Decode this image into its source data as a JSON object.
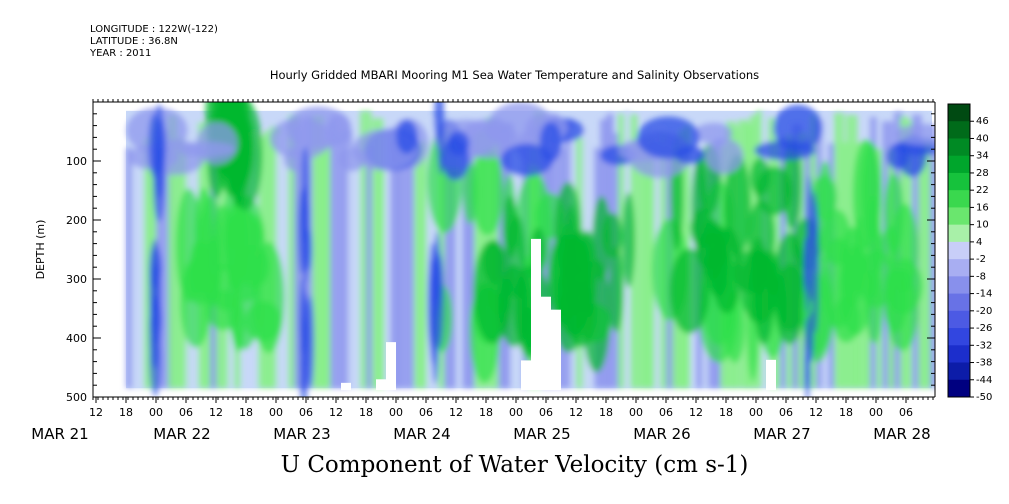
{
  "header": {
    "longitude": "LONGITUDE : 122W(-122)",
    "latitude": "LATITUDE : 36.8N",
    "year": "YEAR : 2011",
    "title": "Hourly Gridded MBARI Mooring M1 Sea Water Temperature and Salinity Observations"
  },
  "chart_data": {
    "type": "heatmap",
    "title": "Hourly Gridded MBARI Mooring M1 Sea Water Temperature and Salinity Observations",
    "bottom_title": "U Component of Water Velocity (cm s-1)",
    "ylabel": "DEPTH (m)",
    "ylim": [
      500,
      0
    ],
    "y_ticks": [
      100,
      200,
      300,
      400,
      500
    ],
    "x_hour_ticks": [
      "12",
      "18",
      "00",
      "06",
      "12",
      "18",
      "00",
      "06",
      "12",
      "18",
      "00",
      "06",
      "12",
      "18",
      "00",
      "06",
      "12",
      "18",
      "00",
      "06",
      "12",
      "18",
      "00",
      "06",
      "12",
      "18",
      "00",
      "06"
    ],
    "x_day_labels": [
      "MAR 21",
      "MAR 22",
      "MAR 23",
      "MAR 24",
      "MAR 25",
      "MAR 26",
      "MAR 27",
      "MAR 28"
    ],
    "data_start": "MAR 21 18:00",
    "data_depth_range": [
      15,
      485
    ],
    "colorbar_levels": [
      46,
      40,
      34,
      28,
      22,
      16,
      10,
      4,
      -2,
      -8,
      -14,
      -20,
      -26,
      -32,
      -38,
      -44,
      -50
    ],
    "colorbar_ticks": [
      "46",
      "40",
      "34",
      "28",
      "22",
      "16",
      "10",
      "4",
      "-2",
      "-8",
      "-14",
      "-20",
      "-26",
      "-32",
      "-38",
      "-44",
      "-50"
    ],
    "colorbar_range": [
      -50,
      52
    ],
    "colors": {
      "strong_negative": "#000080",
      "negative": "#2a4ee6",
      "weak_negative": "#8f98ee",
      "near_zero": "#c8d8f8",
      "weak_positive": "#88f088",
      "positive": "#2ee04a",
      "strong_positive": "#00b82e",
      "max_positive": "#005a14"
    }
  }
}
